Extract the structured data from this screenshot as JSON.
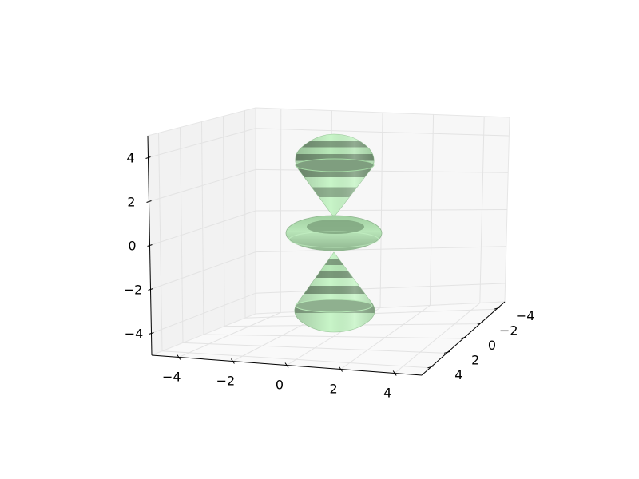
{
  "chart_data": {
    "type": "surface3d",
    "title": "",
    "xlabel": "",
    "ylabel": "",
    "zlabel": "",
    "xlim": [
      -5,
      5
    ],
    "ylim": [
      -5,
      5
    ],
    "zlim": [
      -5,
      5
    ],
    "x_ticks": [
      "−4",
      "−2",
      "0",
      "2",
      "4"
    ],
    "y_ticks": [
      "−4",
      "−2",
      "0",
      "2",
      "4"
    ],
    "z_ticks": [
      "−4",
      "−2",
      "0",
      "2",
      "4"
    ],
    "grid": true,
    "surface_shape": "d-orbital (dz2): two lobes along z with a torus around the equator",
    "colors": {
      "surface_light": "#c8f5c8",
      "surface_mid": "#a6dba6",
      "surface_dark": "#7f9e7f",
      "pane_back": "#f7f7f7",
      "pane_side": "#f2f2f2",
      "pane_floor": "#f9f9f9",
      "grid": "#e3e3e3"
    }
  }
}
